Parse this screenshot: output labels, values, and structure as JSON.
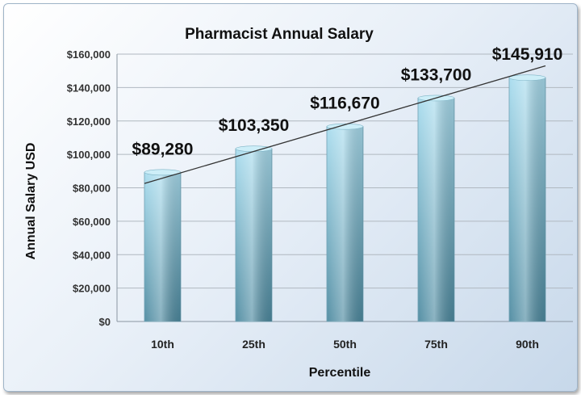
{
  "chart_data": {
    "type": "bar",
    "title": "Pharmacist Annual Salary",
    "xlabel": "Percentile",
    "ylabel": "Annual Salary USD",
    "categories": [
      "10th",
      "25th",
      "50th",
      "75th",
      "90th"
    ],
    "values": [
      89280,
      103350,
      116670,
      133700,
      145910
    ],
    "value_labels": [
      "$89,280",
      "$103,350",
      "$116,670",
      "$133,700",
      "$145,910"
    ],
    "ylim": [
      0,
      160000
    ],
    "yticks": [
      0,
      20000,
      40000,
      60000,
      80000,
      100000,
      120000,
      140000,
      160000
    ],
    "ytick_labels": [
      "$0",
      "$20,000",
      "$40,000",
      "$60,000",
      "$80,000",
      "$100,000",
      "$120,000",
      "$140,000",
      "$160,000"
    ],
    "grid": true,
    "trendline": true,
    "colors": {
      "bar_top": "#a8dcee",
      "bar_bottom": "#4d8aa0",
      "grid": "#b0b8c0"
    }
  }
}
